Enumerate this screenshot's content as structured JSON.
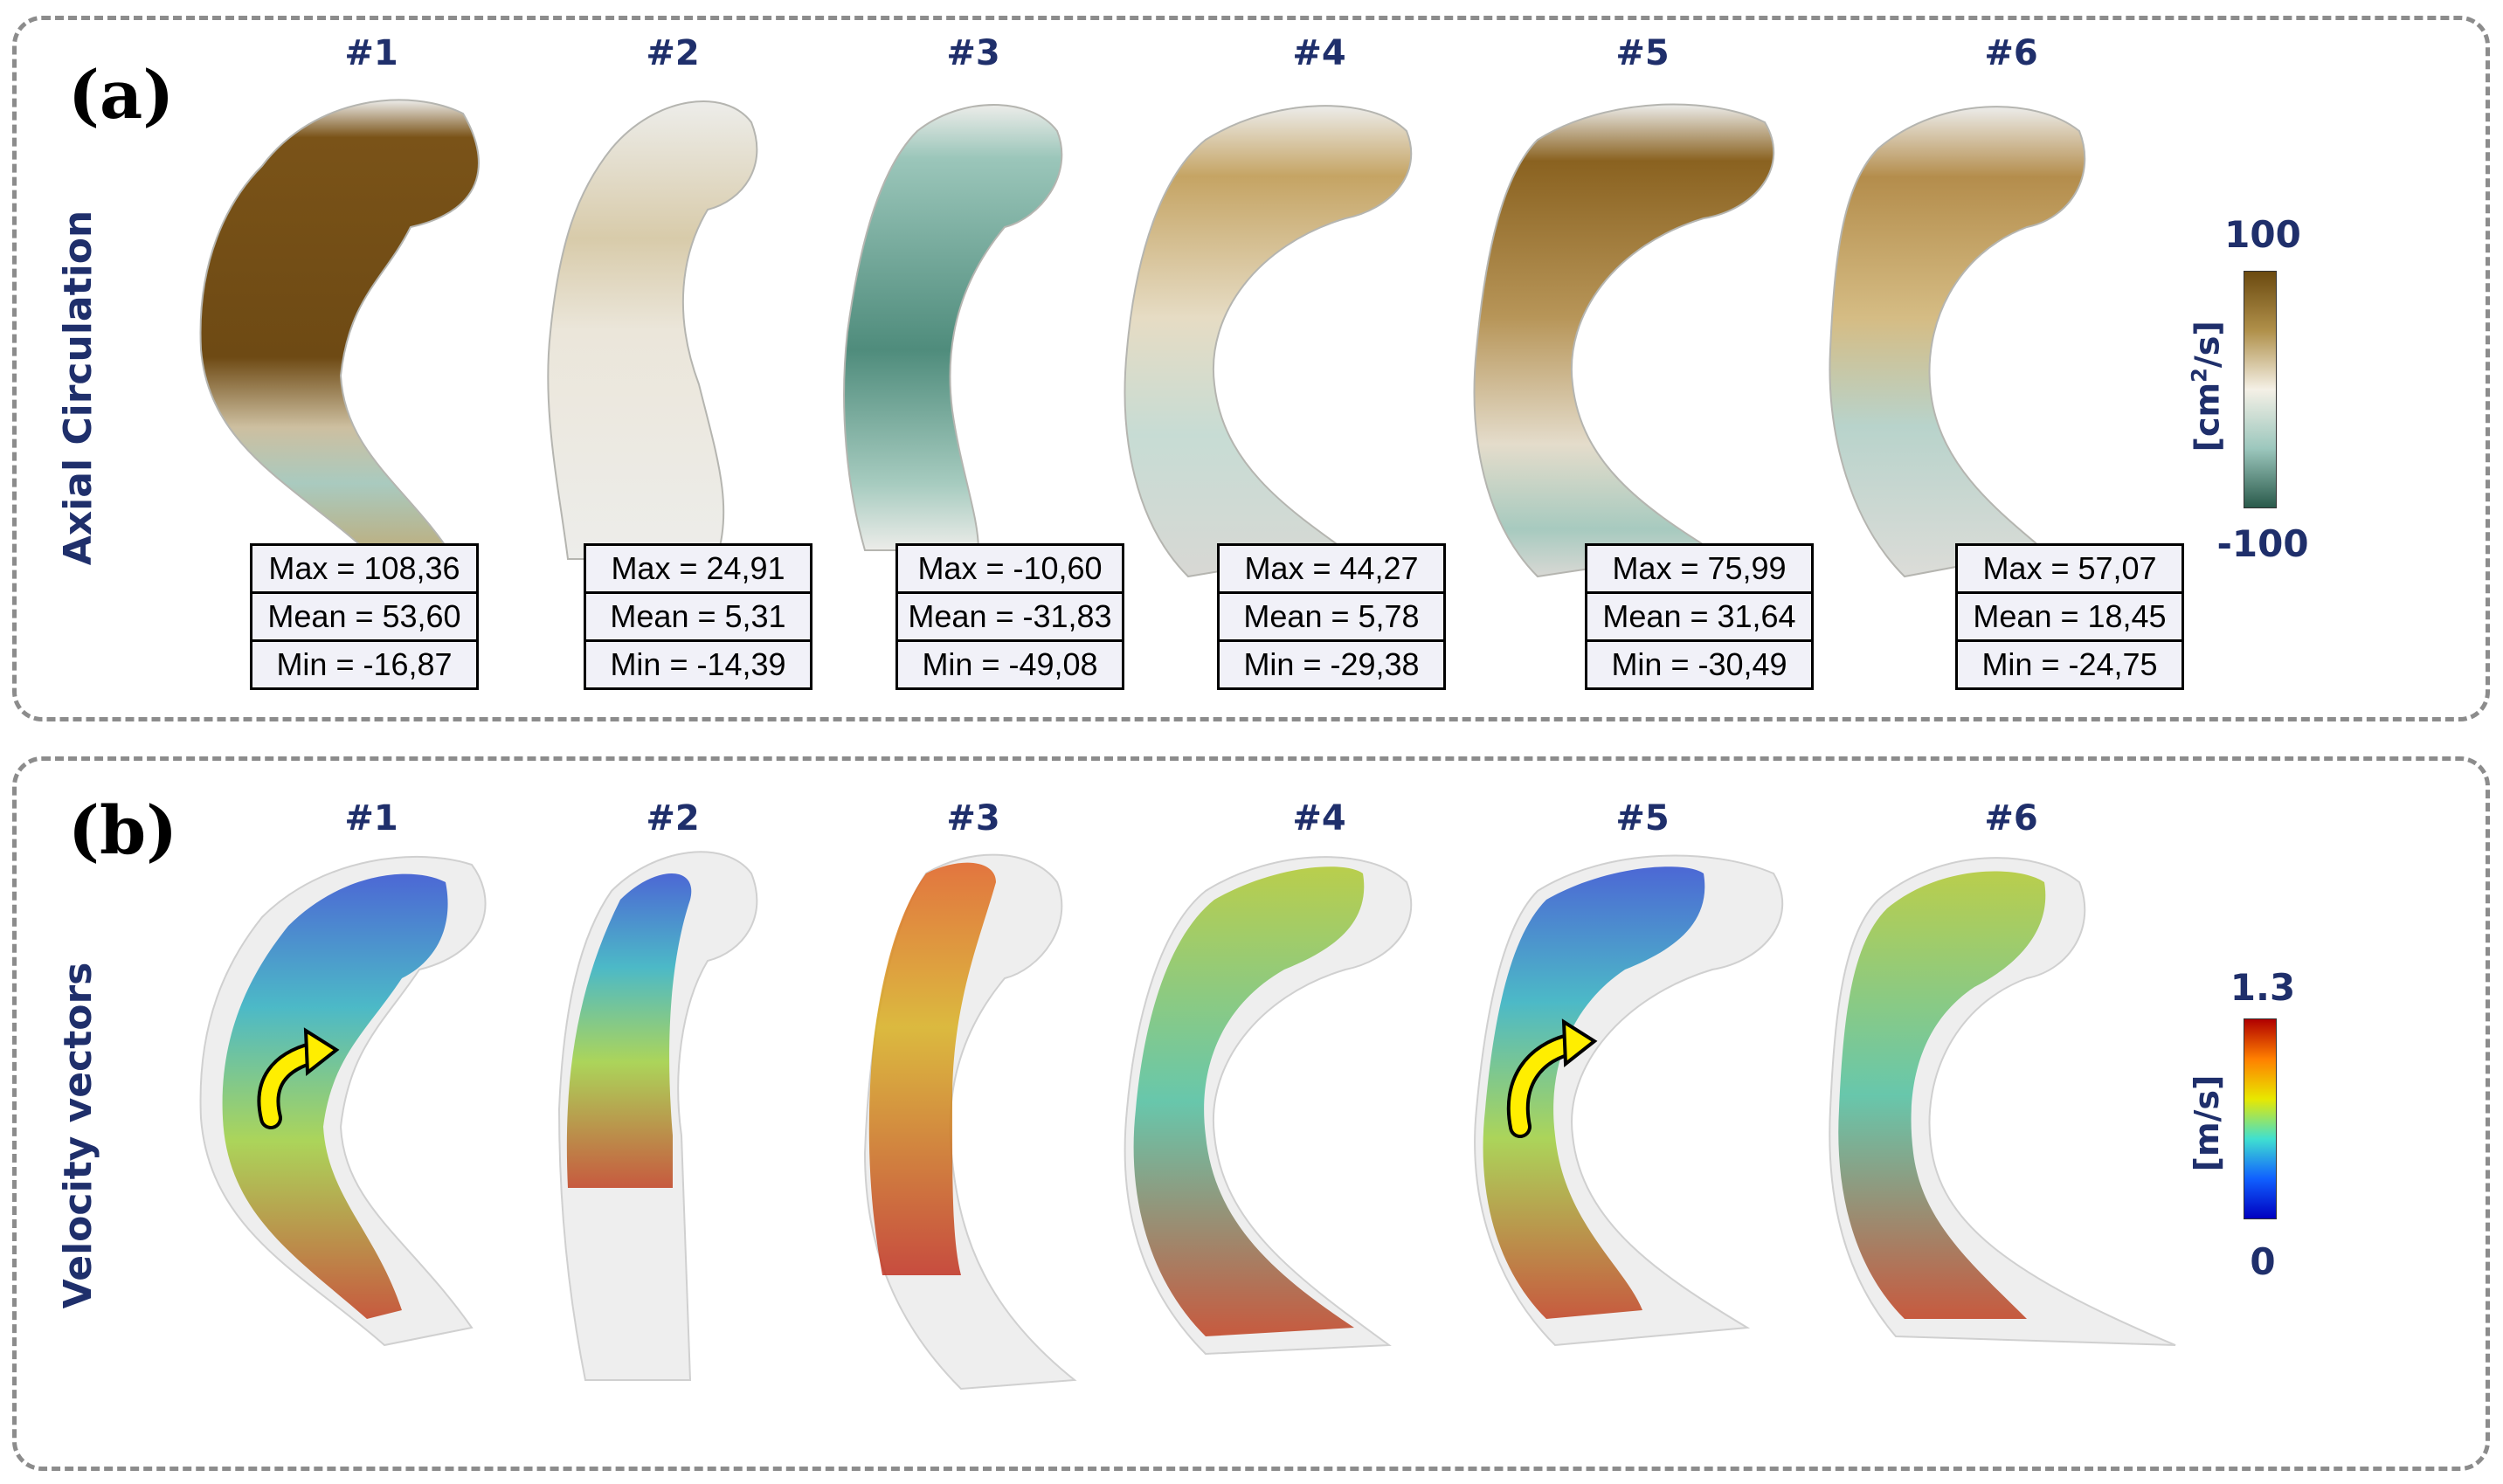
{
  "panel_a": {
    "letter": "(a)",
    "row_title": "Axial Circulation",
    "cases": [
      {
        "label": "#1",
        "max": "Max = 108,36",
        "mean": "Mean = 53,60",
        "min": "Min = -16,87"
      },
      {
        "label": "#2",
        "max": "Max = 24,91",
        "mean": "Mean = 5,31",
        "min": "Min = -14,39"
      },
      {
        "label": "#3",
        "max": "Max = -10,60",
        "mean": "Mean = -31,83",
        "min": "Min = -49,08"
      },
      {
        "label": "#4",
        "max": "Max = 44,27",
        "mean": "Mean = 5,78",
        "min": "Min = -29,38"
      },
      {
        "label": "#5",
        "max": "Max = 75,99",
        "mean": "Mean = 31,64",
        "min": "Min = -30,49"
      },
      {
        "label": "#6",
        "max": "Max = 57,07",
        "mean": "Mean = 18,45",
        "min": "Min = -24,75"
      }
    ],
    "colorbar": {
      "max": "100",
      "min": "-100",
      "unit_base": "[cm",
      "unit_sup": "2",
      "unit_tail": "/s]",
      "colors": [
        "#6b4a10",
        "#b0904a",
        "#f4f0e6",
        "#9cc7bd",
        "#2a5a4b"
      ]
    }
  },
  "panel_b": {
    "letter": "(b)",
    "row_title": "Velocity vectors",
    "cases": [
      {
        "label": "#1"
      },
      {
        "label": "#2"
      },
      {
        "label": "#3"
      },
      {
        "label": "#4"
      },
      {
        "label": "#5"
      },
      {
        "label": "#6"
      }
    ],
    "colorbar": {
      "max": "1.3",
      "min": "0",
      "unit": "[m/s]",
      "colors": [
        "#b00000",
        "#ff8000",
        "#e8e800",
        "#40e0d0",
        "#1060ff",
        "#0000c0"
      ]
    }
  }
}
